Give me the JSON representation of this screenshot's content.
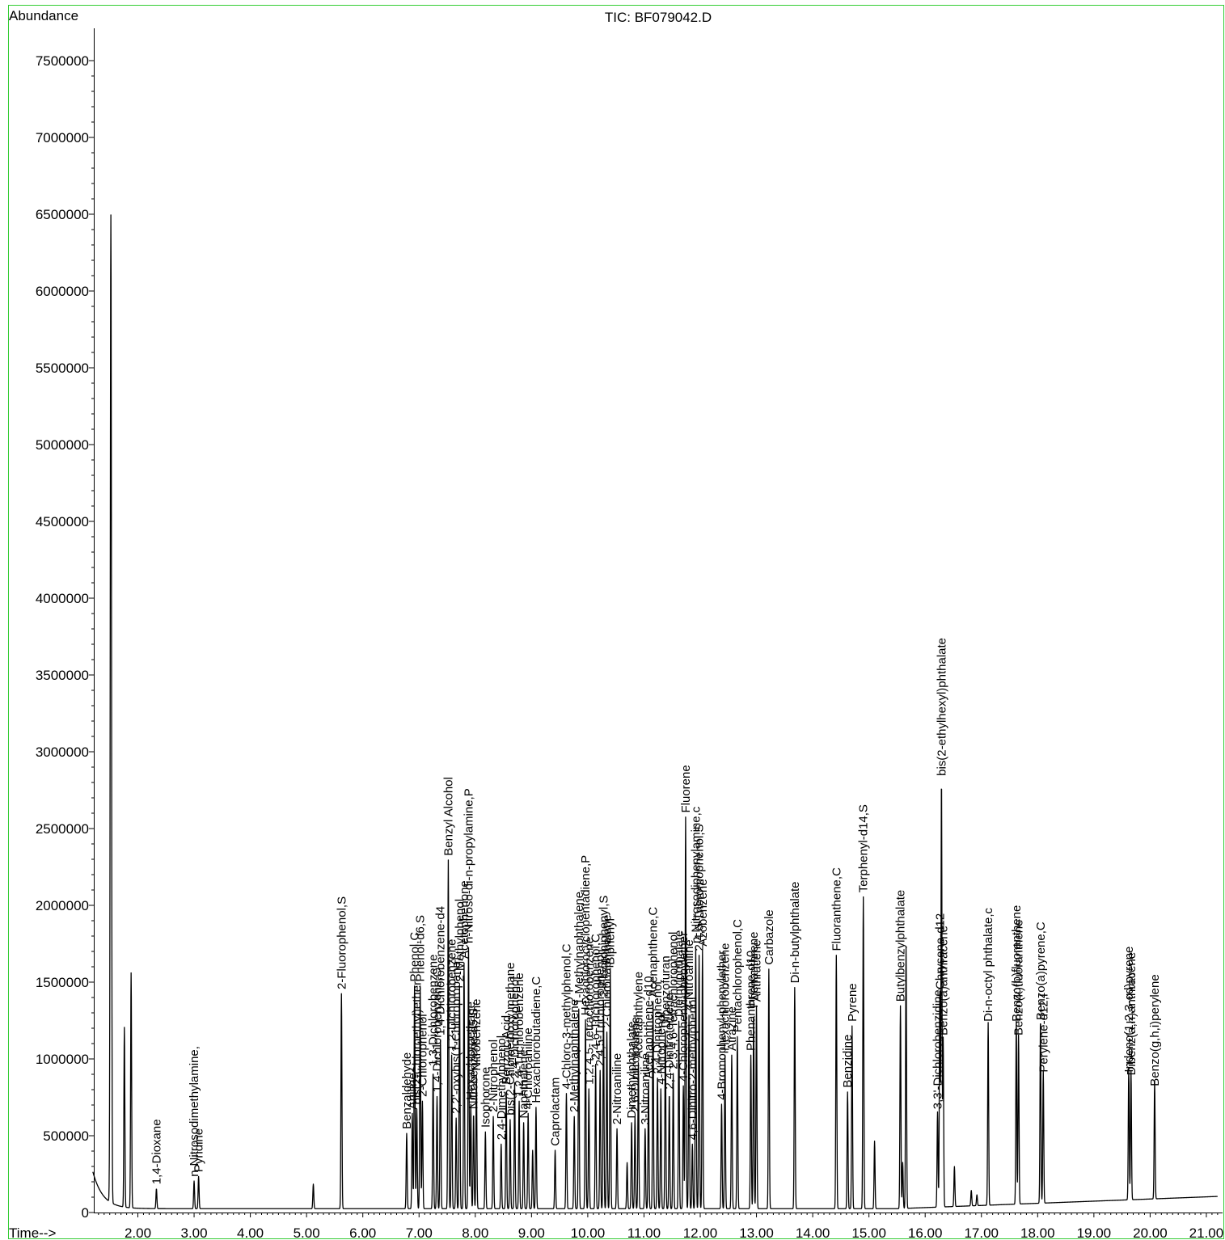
{
  "header": {
    "abundance_label": "Abundance",
    "tic_label": "TIC: BF079042.D",
    "time_label": "Time-->"
  },
  "colors": {
    "frame": "#33cc33",
    "trace": "#000000",
    "text": "#000000",
    "background": "#ffffff"
  },
  "chart_data": {
    "type": "line",
    "title": "TIC: BF079042.D",
    "xlabel": "Time-->",
    "ylabel": "Abundance",
    "xlim": [
      1.2,
      21.2
    ],
    "ylim": [
      0,
      7700000
    ],
    "grid": false,
    "xticks": [
      2,
      3,
      4,
      5,
      6,
      7,
      8,
      9,
      10,
      11,
      12,
      13,
      14,
      15,
      16,
      17,
      18,
      19,
      20,
      21
    ],
    "xtick_labels": [
      "2.00",
      "3.00",
      "4.00",
      "5.00",
      "6.00",
      "7.00",
      "8.00",
      "9.00",
      "10.00",
      "11.00",
      "12.00",
      "13.00",
      "14.00",
      "15.00",
      "16.00",
      "17.00",
      "18.00",
      "19.00",
      "20.00",
      "21.00"
    ],
    "yticks": [
      0,
      500000,
      1000000,
      1500000,
      2000000,
      2500000,
      3000000,
      3500000,
      4000000,
      4500000,
      5000000,
      5500000,
      6000000,
      6500000,
      7000000,
      7500000
    ],
    "ytick_labels": [
      "0",
      "500000",
      "1000000",
      "1500000",
      "2000000",
      "2500000",
      "3000000",
      "3500000",
      "4000000",
      "4500000",
      "5000000",
      "5500000",
      "6000000",
      "6500000",
      "7000000",
      "7500000"
    ],
    "peaks": [
      {
        "x": 1.52,
        "y": 6430000,
        "label": ""
      },
      {
        "x": 1.76,
        "y": 1170000,
        "label": ""
      },
      {
        "x": 1.88,
        "y": 1530000,
        "label": ""
      },
      {
        "x": 2.33,
        "y": 130000,
        "label": "1,4-Dioxane"
      },
      {
        "x": 3.0,
        "y": 180000,
        "label": "n-Nitrosodimethylamine,"
      },
      {
        "x": 3.08,
        "y": 210000,
        "label": "Pyridine"
      },
      {
        "x": 5.12,
        "y": 160000,
        "label": ""
      },
      {
        "x": 5.62,
        "y": 1400000,
        "label": "2-Fluorophenol,S"
      },
      {
        "x": 6.78,
        "y": 490000,
        "label": "Benzaldehyde"
      },
      {
        "x": 6.88,
        "y": 620000,
        "label": "Aniline"
      },
      {
        "x": 6.92,
        "y": 1450000,
        "label": "Phenol,C"
      },
      {
        "x": 6.96,
        "y": 650000,
        "label": "bis(2-Chloroethyl)ether"
      },
      {
        "x": 7.02,
        "y": 1450000,
        "label": "Phenol-d6,S"
      },
      {
        "x": 7.06,
        "y": 700000,
        "label": "2-Chlorophenol"
      },
      {
        "x": 7.25,
        "y": 900000,
        "label": "1,3-Dichlorobenzene"
      },
      {
        "x": 7.32,
        "y": 730000,
        "label": "1,4-Dichlorobenzene,C"
      },
      {
        "x": 7.38,
        "y": 1100000,
        "label": "1,4-Dichlorobenzene-d4"
      },
      {
        "x": 7.52,
        "y": 2270000,
        "label": "Benzyl Alcohol"
      },
      {
        "x": 7.58,
        "y": 1000000,
        "label": "1,2-Dichlorobenzene"
      },
      {
        "x": 7.66,
        "y": 590000,
        "label": "2,2'-oxybis(1-Chloropropane)"
      },
      {
        "x": 7.72,
        "y": 1450000,
        "label": "2-Methylphenol"
      },
      {
        "x": 7.8,
        "y": 1600000,
        "label": "Acetophenone"
      },
      {
        "x": 7.88,
        "y": 1700000,
        "label": "n-Nitroso-di-n-propylamine,P"
      },
      {
        "x": 7.92,
        "y": 680000,
        "label": "Hexachloroethane"
      },
      {
        "x": 7.97,
        "y": 620000,
        "label": "Nitrobenzene-d5,S"
      },
      {
        "x": 8.02,
        "y": 870000,
        "label": "Nitrobenzene"
      },
      {
        "x": 8.18,
        "y": 500000,
        "label": "Isophorone"
      },
      {
        "x": 8.32,
        "y": 600000,
        "label": "2-Nitrophenol"
      },
      {
        "x": 8.46,
        "y": 420000,
        "label": "2,4-Dimethylphenol"
      },
      {
        "x": 8.55,
        "y": 780000,
        "label": "Benzoic Acid"
      },
      {
        "x": 8.62,
        "y": 580000,
        "label": "bis(2-Chloroethoxy)methane"
      },
      {
        "x": 8.7,
        "y": 820000,
        "label": "2,4-Dichlorophenol"
      },
      {
        "x": 8.78,
        "y": 700000,
        "label": "1,2,4-Trichlorobenzene"
      },
      {
        "x": 8.86,
        "y": 560000,
        "label": "Naphthalene"
      },
      {
        "x": 8.94,
        "y": 620000,
        "label": "4-Chloroaniline"
      },
      {
        "x": 9.02,
        "y": 380000,
        "label": ""
      },
      {
        "x": 9.08,
        "y": 660000,
        "label": "Hexachlorobutadiene,C"
      },
      {
        "x": 9.42,
        "y": 380000,
        "label": "Caprolactam"
      },
      {
        "x": 9.62,
        "y": 750000,
        "label": "4-Chloro-3-methylphenol,C"
      },
      {
        "x": 9.76,
        "y": 600000,
        "label": "2-Methylnaphthalene"
      },
      {
        "x": 9.84,
        "y": 1300000,
        "label": "1-Methylnaphthalene"
      },
      {
        "x": 9.96,
        "y": 1230000,
        "label": "Hexachlorocyclopentadiene,P"
      },
      {
        "x": 10.02,
        "y": 780000,
        "label": "1,2,4,5-Tetrachlorobenzene"
      },
      {
        "x": 10.14,
        "y": 940000,
        "label": "2,4,6-Trichlorophenol,C"
      },
      {
        "x": 10.22,
        "y": 900000,
        "label": "2,4,5-Trichlorophenol"
      },
      {
        "x": 10.28,
        "y": 1350000,
        "label": "2-Fluorobiphenyl,S"
      },
      {
        "x": 10.34,
        "y": 1150000,
        "label": "2-Chloronaphthalene"
      },
      {
        "x": 10.4,
        "y": 1560000,
        "label": "Biphenyl"
      },
      {
        "x": 10.52,
        "y": 520000,
        "label": "2-Nitroaniline"
      },
      {
        "x": 10.7,
        "y": 300000,
        "label": ""
      },
      {
        "x": 10.78,
        "y": 560000,
        "label": "Dimethylphthalate"
      },
      {
        "x": 10.84,
        "y": 600000,
        "label": "2,6-Dinitrotoluene"
      },
      {
        "x": 10.9,
        "y": 950000,
        "label": "Acenaphthylene"
      },
      {
        "x": 11.02,
        "y": 520000,
        "label": "3-Nitroaniline"
      },
      {
        "x": 11.08,
        "y": 820000,
        "label": "Acenaphthene-d10"
      },
      {
        "x": 11.16,
        "y": 1350000,
        "label": "Acenaphthene,C"
      },
      {
        "x": 11.24,
        "y": 850000,
        "label": "2,4-Dinitrophenol"
      },
      {
        "x": 11.3,
        "y": 780000,
        "label": "4-Nitrophenol"
      },
      {
        "x": 11.38,
        "y": 1150000,
        "label": "Dibenzofuran"
      },
      {
        "x": 11.45,
        "y": 750000,
        "label": "2,4-Dinitrotoluene"
      },
      {
        "x": 11.52,
        "y": 880000,
        "label": "2,3,4,6-Tetrachlorophenol"
      },
      {
        "x": 11.62,
        "y": 1220000,
        "label": "Diethylphthalate"
      },
      {
        "x": 11.7,
        "y": 800000,
        "label": "4-Chlorophenyl-phenylether"
      },
      {
        "x": 11.74,
        "y": 2550000,
        "label": "Fluorene"
      },
      {
        "x": 11.8,
        "y": 1260000,
        "label": "4-Nitroaniline"
      },
      {
        "x": 11.86,
        "y": 420000,
        "label": "4,6-Dinitro-2-methylphenol"
      },
      {
        "x": 11.92,
        "y": 1700000,
        "label": "n-Nitrosodiphenylamine,c"
      },
      {
        "x": 11.98,
        "y": 1650000,
        "label": "2,4,6-Tribromophenol,S"
      },
      {
        "x": 12.04,
        "y": 1680000,
        "label": "Azobenzene"
      },
      {
        "x": 12.38,
        "y": 680000,
        "label": "4-Bromophenyl-phenylether"
      },
      {
        "x": 12.44,
        "y": 1000000,
        "label": "Hexachlorobenzene"
      },
      {
        "x": 12.56,
        "y": 1000000,
        "label": "Atrazine"
      },
      {
        "x": 12.66,
        "y": 1120000,
        "label": "Pentachlorophenol,C"
      },
      {
        "x": 12.9,
        "y": 1000000,
        "label": "Phenanthrene-d10"
      },
      {
        "x": 12.95,
        "y": 1280000,
        "label": "Phenanthrene"
      },
      {
        "x": 13.0,
        "y": 1320000,
        "label": "Anthracene"
      },
      {
        "x": 13.22,
        "y": 1560000,
        "label": "Carbazole"
      },
      {
        "x": 13.68,
        "y": 1440000,
        "label": "Di-n-butylphthalate"
      },
      {
        "x": 14.42,
        "y": 1650000,
        "label": "Fluoranthene,C"
      },
      {
        "x": 14.62,
        "y": 760000,
        "label": "Benzidine"
      },
      {
        "x": 14.7,
        "y": 1190000,
        "label": "Pyrene"
      },
      {
        "x": 14.9,
        "y": 2030000,
        "label": "Terphenyl-d14,S"
      },
      {
        "x": 15.1,
        "y": 440000,
        "label": ""
      },
      {
        "x": 15.56,
        "y": 1320000,
        "label": "Butylbenzylphthalate"
      },
      {
        "x": 15.6,
        "y": 300000,
        "label": ""
      },
      {
        "x": 15.66,
        "y": 1700000,
        "label": ""
      },
      {
        "x": 16.22,
        "y": 620000,
        "label": "3,3'-Dichlorobenzidine"
      },
      {
        "x": 16.26,
        "y": 1400000,
        "label": "Chrysene-d12"
      },
      {
        "x": 16.29,
        "y": 2790000,
        "label": "bis(2-ethylhexyl)phthalate"
      },
      {
        "x": 16.32,
        "y": 1100000,
        "label": "Benzo(a)anthracene"
      },
      {
        "x": 16.52,
        "y": 260000,
        "label": ""
      },
      {
        "x": 16.82,
        "y": 100000,
        "label": ""
      },
      {
        "x": 16.92,
        "y": 70000,
        "label": ""
      },
      {
        "x": 17.12,
        "y": 1190000,
        "label": "Di-n-octyl phthalate,c"
      },
      {
        "x": 17.62,
        "y": 1190000,
        "label": "Benzo(b)fluoranthene"
      },
      {
        "x": 17.66,
        "y": 1100000,
        "label": "Benzo(k)fluoranthene"
      },
      {
        "x": 18.05,
        "y": 1200000,
        "label": "Benzo(a)pyrene,C"
      },
      {
        "x": 18.1,
        "y": 860000,
        "label": "Perylene-d12,I"
      },
      {
        "x": 19.62,
        "y": 860000,
        "label": "Indeno(1,2,3-cd)pyrene"
      },
      {
        "x": 19.66,
        "y": 840000,
        "label": "Dibenz(a,h)anthracene"
      },
      {
        "x": 20.08,
        "y": 770000,
        "label": "Benzo(g,h,i)perylene"
      }
    ],
    "annotations": [
      "1,4-Dioxane",
      "n-Nitrosodimethylamine,",
      "Pyridine",
      "2-Fluorophenol,S",
      "Benzaldehyde",
      "Aniline",
      "Phenol,C",
      "Phenol-d6,S",
      "bis(2-Chloroethyl)ether",
      "2-Chlorophenol",
      "1,3-Dichlorobenzene",
      "1,4-Dichlorobenzene,C",
      "1,4-Dichlorobenzene-d4",
      "1,2-Dichlorobenzene",
      "2,2'-oxybis(1-Chloropropane)",
      "Benzyl Alcohol",
      "2-Methylphenol",
      "Acetophenone",
      "4-Methylphenol",
      "n-Nitroso-di-n-propylamine,P",
      "Nitrobenzene-d5,S",
      "Hexachloroethane",
      "Nitrobenzene",
      "Isophorone",
      "2-Nitrophenol",
      "2,4-Dimethylphenol",
      "Benzoic Acid",
      "bis(2-Chloroethoxy)methane",
      "2,4-Dichlorophenol",
      "1,2,4-Trichlorobenzene",
      "Naphthalene",
      "4-Chloroaniline",
      "Hexachlorobutadiene,C",
      "Caprolactam",
      "4-Chloro-3-methylphenol,C",
      "2-Methylnaphthalene",
      "1-Methylnaphthalene",
      "Hexachlorocyclopentadiene,P",
      "1,2,4,5-Tetrachlorobenzene",
      "2,4,6-Trichlorophenol,C",
      "2,4,5-Trichlorophenol",
      "2-Fluorobiphenyl,S",
      "2-Chloronaphthalene",
      "Biphenyl",
      "2-Nitroaniline",
      "Dimethylphthalate",
      "2,6-Dinitrotoluene",
      "Acenaphthylene",
      "3-Nitroaniline",
      "Acenaphthene-d10",
      "Acenaphthene,C",
      "2,4-Dinitrophenol",
      "4-Nitrophenol",
      "Dibenzofuran",
      "2,4-Dinitrotoluene",
      "2,3,4,6-Tetrachlorophenol",
      "Diethylphthalate",
      "4-Chlorophenyl-phenylether",
      "Fluorene",
      "4-Nitroaniline",
      "4,6-Dinitro-2-methylphenol",
      "n-Nitrosodiphenylamine,c",
      "2,4,6-Tribromophenol,S",
      "Azobenzene",
      "4-Bromophenyl-phenylether",
      "Hexachlorobenzene",
      "Atrazine",
      "Pentachlorophenol,C",
      "Phenanthrene-d10",
      "Phenanthrene",
      "Anthracene",
      "Carbazole",
      "Di-n-butylphthalate",
      "Fluoranthene,C",
      "Benzidine",
      "Pyrene",
      "Terphenyl-d14,S",
      "Butylbenzylphthalate",
      "3,3'-Dichlorobenzidine",
      "Chrysene-d12",
      "Chrysene",
      "Benzo(a)anthracene",
      "bis(2-ethylhexyl)phthalate",
      "Di-n-octyl phthalate,c",
      "Benzo(b)fluoranthene",
      "Benzo(k)fluoranthene",
      "Benzo(a)pyrene,C",
      "Perylene-d12,I",
      "Indeno(1,2,3-cd)pyrene",
      "Dibenz(a,h)anthracene",
      "Benzo(g,h,i)perylene"
    ]
  }
}
